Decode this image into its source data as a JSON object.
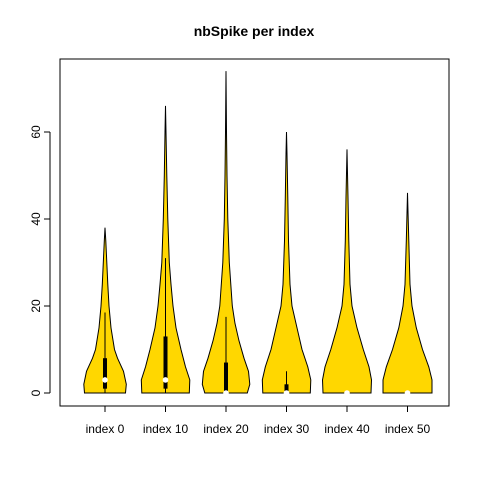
{
  "chart_data": {
    "type": "violin",
    "title": "nbSpike per index",
    "xlabel": "",
    "ylabel": "",
    "categories": [
      "index 0",
      "index 10",
      "index 20",
      "index 30",
      "index 40",
      "index 50"
    ],
    "ylim": [
      0,
      74
    ],
    "y_ticks": [
      0,
      20,
      40,
      60
    ],
    "fill_color": "#FFD700",
    "outline_color": "#000000",
    "median_color": "#ffffff",
    "grid": false,
    "legend": "none",
    "violins": [
      {
        "name": "index 0",
        "max": 38,
        "q1": 1,
        "median": 3,
        "q3": 8,
        "whisker_low": 0,
        "whisker_high": 18.5,
        "profile": [
          [
            0,
            0.82
          ],
          [
            2,
            0.85
          ],
          [
            5,
            0.74
          ],
          [
            8,
            0.5
          ],
          [
            10,
            0.38
          ],
          [
            15,
            0.24
          ],
          [
            20,
            0.16
          ],
          [
            25,
            0.11
          ],
          [
            30,
            0.07
          ],
          [
            35,
            0.03
          ],
          [
            38,
            0
          ]
        ]
      },
      {
        "name": "index 10",
        "max": 66,
        "q1": 1,
        "median": 3,
        "q3": 13,
        "whisker_low": 0,
        "whisker_high": 31,
        "profile": [
          [
            0,
            0.95
          ],
          [
            3,
            0.97
          ],
          [
            6,
            0.8
          ],
          [
            10,
            0.62
          ],
          [
            15,
            0.42
          ],
          [
            20,
            0.3
          ],
          [
            25,
            0.22
          ],
          [
            30,
            0.15
          ],
          [
            40,
            0.09
          ],
          [
            50,
            0.05
          ],
          [
            60,
            0.02
          ],
          [
            66,
            0
          ]
        ]
      },
      {
        "name": "index 20",
        "max": 74,
        "q1": 0,
        "median": 0,
        "q3": 7,
        "whisker_low": 0,
        "whisker_high": 17.5,
        "profile": [
          [
            0,
            0.85
          ],
          [
            2,
            0.95
          ],
          [
            5,
            0.9
          ],
          [
            8,
            0.72
          ],
          [
            12,
            0.52
          ],
          [
            16,
            0.36
          ],
          [
            20,
            0.25
          ],
          [
            30,
            0.13
          ],
          [
            40,
            0.07
          ],
          [
            50,
            0.04
          ],
          [
            60,
            0.02
          ],
          [
            74,
            0
          ]
        ]
      },
      {
        "name": "index 30",
        "max": 60,
        "q1": 0,
        "median": 0,
        "q3": 2,
        "whisker_low": 0,
        "whisker_high": 5,
        "profile": [
          [
            0,
            0.95
          ],
          [
            3,
            0.97
          ],
          [
            6,
            0.85
          ],
          [
            10,
            0.62
          ],
          [
            15,
            0.42
          ],
          [
            20,
            0.22
          ],
          [
            25,
            0.14
          ],
          [
            35,
            0.08
          ],
          [
            45,
            0.05
          ],
          [
            55,
            0.02
          ],
          [
            60,
            0
          ]
        ]
      },
      {
        "name": "index 40",
        "max": 56,
        "q1": 0,
        "median": 0,
        "q3": 0,
        "whisker_low": 0,
        "whisker_high": 0,
        "profile": [
          [
            0,
            0.96
          ],
          [
            3,
            0.98
          ],
          [
            6,
            0.88
          ],
          [
            10,
            0.65
          ],
          [
            15,
            0.4
          ],
          [
            20,
            0.2
          ],
          [
            25,
            0.12
          ],
          [
            35,
            0.07
          ],
          [
            45,
            0.04
          ],
          [
            56,
            0
          ]
        ]
      },
      {
        "name": "index 50",
        "max": 46,
        "q1": 0,
        "median": 0,
        "q3": 0,
        "whisker_low": 0,
        "whisker_high": 0,
        "profile": [
          [
            0,
            0.98
          ],
          [
            3,
            0.98
          ],
          [
            6,
            0.85
          ],
          [
            10,
            0.6
          ],
          [
            15,
            0.35
          ],
          [
            20,
            0.18
          ],
          [
            25,
            0.1
          ],
          [
            35,
            0.05
          ],
          [
            46,
            0
          ]
        ]
      }
    ]
  }
}
